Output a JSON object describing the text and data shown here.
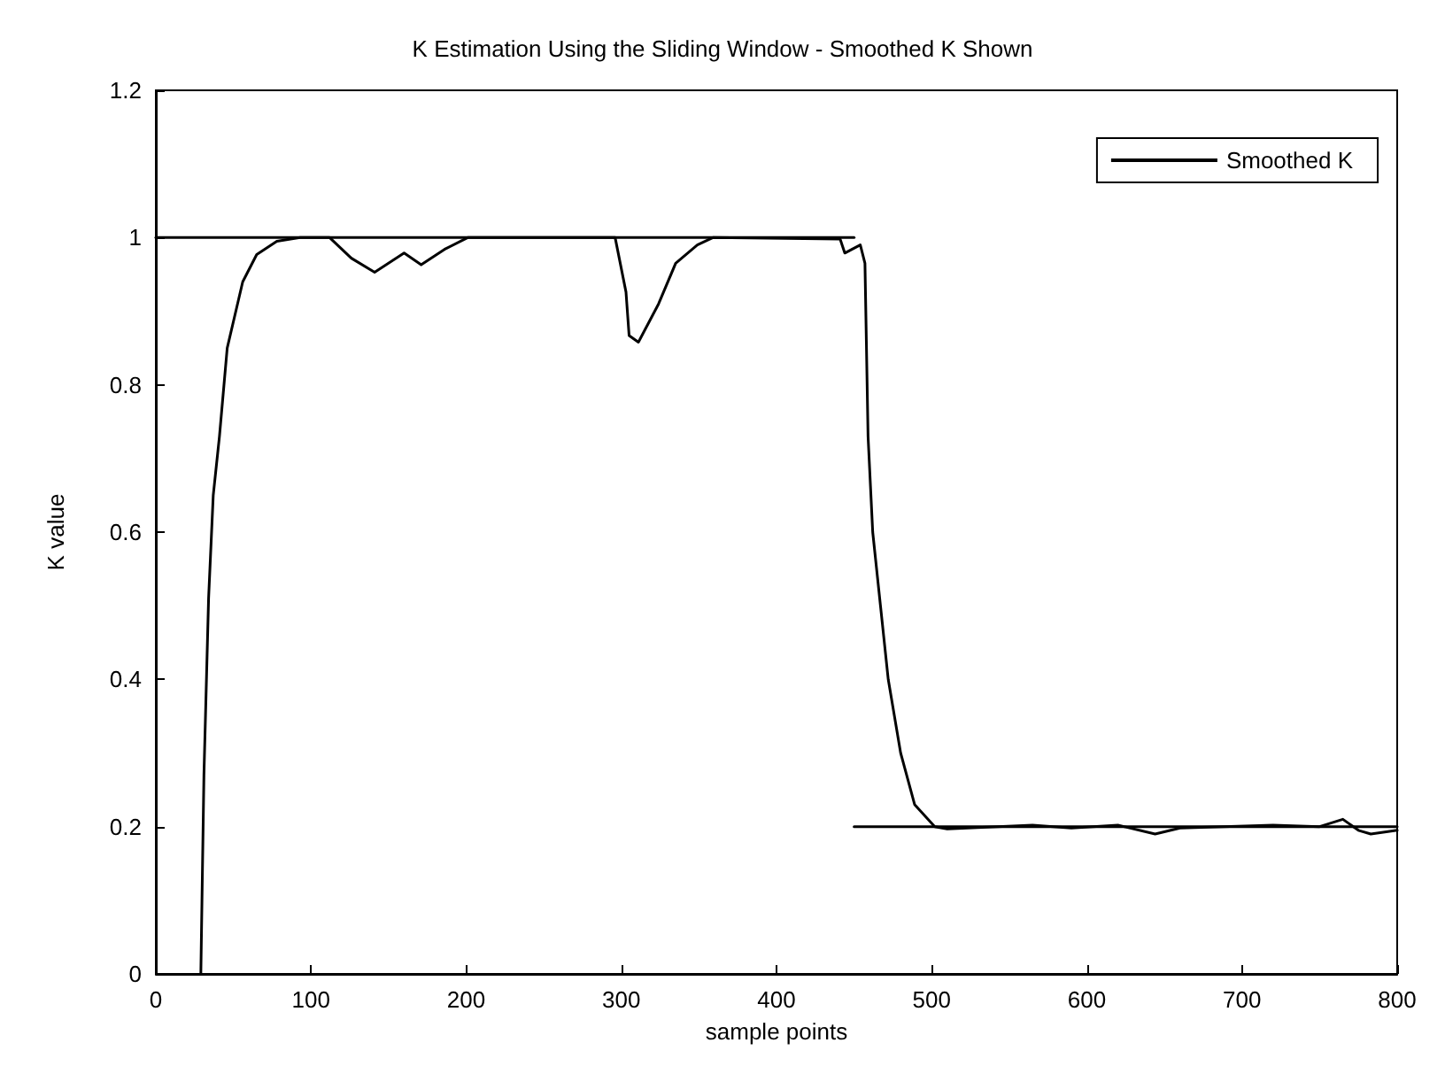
{
  "chart_data": {
    "type": "line",
    "title": "K Estimation Using the Sliding Window - Smoothed K Shown",
    "xlabel": "sample points",
    "ylabel": "K value",
    "xlim": [
      0,
      800
    ],
    "xticks": [
      0,
      100,
      200,
      300,
      400,
      500,
      600,
      700,
      800
    ],
    "ylim": [
      0,
      1.2
    ],
    "yticks": [
      0,
      0.2,
      0.4,
      0.6,
      0.8,
      1,
      1.2
    ],
    "grid": false,
    "legend": "top right",
    "marker": "none",
    "line_style": "solid",
    "series": [
      {
        "name": "Smoothed K",
        "color": "#000000",
        "x": [
          29,
          29,
          31,
          34,
          37,
          41,
          46,
          56,
          65,
          78,
          93,
          112,
          126,
          141,
          160,
          171,
          186,
          201,
          296,
          303,
          305,
          311,
          324,
          335,
          349,
          359,
          441,
          444,
          454,
          457,
          459,
          462,
          467,
          472,
          480,
          489,
          502,
          510,
          565,
          590,
          620,
          644,
          660,
          720,
          750,
          765,
          775,
          783,
          800
        ],
        "values": [
          0,
          0,
          0.27,
          0.51,
          0.65,
          0.73,
          0.85,
          0.94,
          0.977,
          0.995,
          1,
          1,
          0.972,
          0.953,
          0.979,
          0.963,
          0.984,
          1,
          1,
          0.926,
          0.867,
          0.858,
          0.91,
          0.965,
          0.99,
          1,
          0.998,
          0.979,
          0.99,
          0.965,
          0.73,
          0.6,
          0.5,
          0.4,
          0.3,
          0.23,
          0.2,
          0.197,
          0.202,
          0.198,
          0.202,
          0.19,
          0.198,
          0.202,
          0.2,
          0.21,
          0.195,
          0.19,
          0.195
        ]
      },
      {
        "color": "#000000",
        "x": [
          0,
          450
        ],
        "values": [
          1,
          1
        ]
      },
      {
        "color": "#000000",
        "x": [
          450,
          800
        ],
        "values": [
          0.2,
          0.2
        ]
      }
    ]
  }
}
